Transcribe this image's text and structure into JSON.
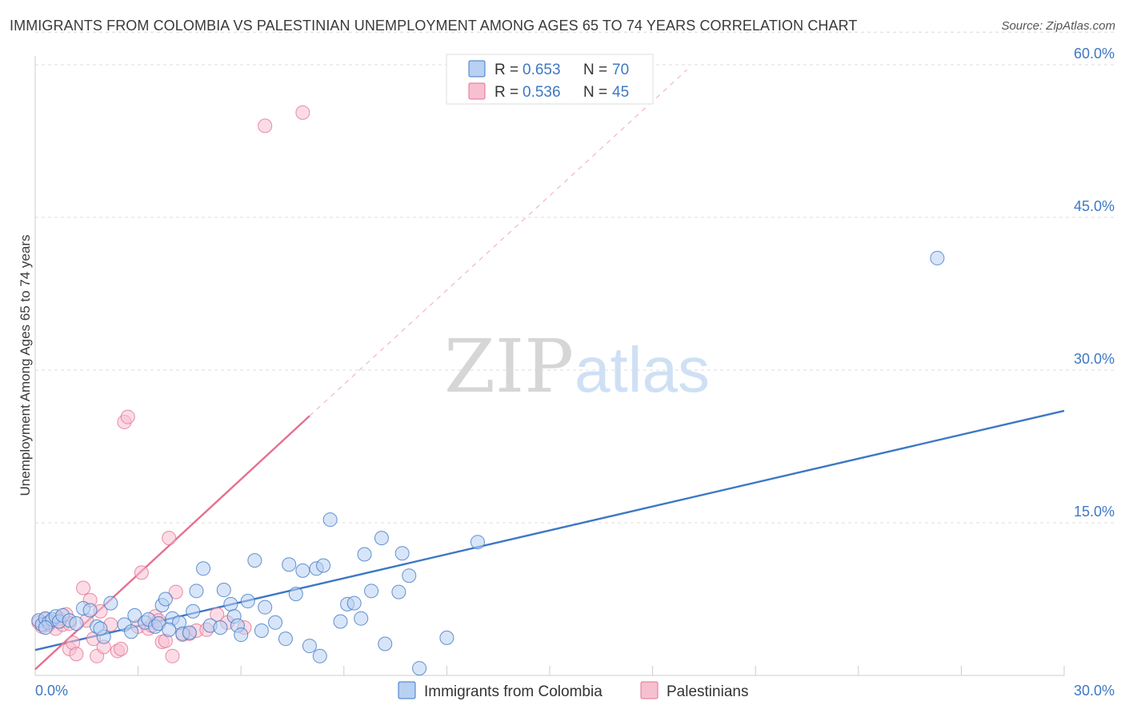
{
  "title": "IMMIGRANTS FROM COLOMBIA VS PALESTINIAN UNEMPLOYMENT AMONG AGES 65 TO 74 YEARS CORRELATION CHART",
  "source": "Source: ZipAtlas.com",
  "watermark": {
    "zip": "ZIP",
    "atlas": "atlas"
  },
  "colors": {
    "blue": "#3d78c4",
    "blue_fill": "#b8d0f2",
    "pink": "#e5708f",
    "pink_fill": "#f7c0d1",
    "grid": "#dcdcdc"
  },
  "chart_data": {
    "type": "scatter",
    "title": "IMMIGRANTS FROM COLOMBIA VS PALESTINIAN UNEMPLOYMENT AMONG AGES 65 TO 74 YEARS CORRELATION CHART",
    "xlabel": "",
    "ylabel": "Unemployment Among Ages 65 to 74 years",
    "xlim": [
      0,
      30
    ],
    "ylim": [
      0,
      63
    ],
    "x_tick_labels": [
      {
        "value": 0,
        "label": "0.0%"
      },
      {
        "value": 30,
        "label": "30.0%"
      }
    ],
    "y_tick_labels": [
      {
        "value": 15,
        "label": "15.0%"
      },
      {
        "value": 30,
        "label": "30.0%"
      },
      {
        "value": 45,
        "label": "45.0%"
      },
      {
        "value": 60,
        "label": "60.0%"
      }
    ],
    "legend": [
      {
        "name": "Immigrants from Colombia",
        "r_label": "R =",
        "r": "0.653",
        "n_label": "N =",
        "n": "70",
        "color": "blue"
      },
      {
        "name": "Palestinians",
        "r_label": "R =",
        "r": "0.536",
        "n_label": "N =",
        "n": "45",
        "color": "pink"
      }
    ],
    "series": [
      {
        "name": "Immigrants from Colombia",
        "color": "blue",
        "trendline": {
          "x": [
            0,
            30
          ],
          "y": [
            2.5,
            26.0
          ],
          "style": "solid"
        },
        "points": [
          [
            0.1,
            5.4
          ],
          [
            0.2,
            5.0
          ],
          [
            0.3,
            5.6
          ],
          [
            0.4,
            5.2
          ],
          [
            0.5,
            5.5
          ],
          [
            0.6,
            5.8
          ],
          [
            0.7,
            5.3
          ],
          [
            0.8,
            5.9
          ],
          [
            1.0,
            5.4
          ],
          [
            1.2,
            5.1
          ],
          [
            1.4,
            6.6
          ],
          [
            1.6,
            6.4
          ],
          [
            1.8,
            4.8
          ],
          [
            2.0,
            3.8
          ],
          [
            2.2,
            7.1
          ],
          [
            2.6,
            5.0
          ],
          [
            2.8,
            4.3
          ],
          [
            2.9,
            5.9
          ],
          [
            3.2,
            5.2
          ],
          [
            3.3,
            5.5
          ],
          [
            3.5,
            4.8
          ],
          [
            3.6,
            5.1
          ],
          [
            3.7,
            6.9
          ],
          [
            3.8,
            7.5
          ],
          [
            4.0,
            5.6
          ],
          [
            4.2,
            5.2
          ],
          [
            4.3,
            4.1
          ],
          [
            4.5,
            4.2
          ],
          [
            4.6,
            6.3
          ],
          [
            4.7,
            8.3
          ],
          [
            4.9,
            10.5
          ],
          [
            5.1,
            4.9
          ],
          [
            5.4,
            4.7
          ],
          [
            5.5,
            8.4
          ],
          [
            5.7,
            7.0
          ],
          [
            5.8,
            5.8
          ],
          [
            5.9,
            4.9
          ],
          [
            6.0,
            4.0
          ],
          [
            6.2,
            7.3
          ],
          [
            6.4,
            11.3
          ],
          [
            6.6,
            4.4
          ],
          [
            6.7,
            6.7
          ],
          [
            7.0,
            5.2
          ],
          [
            7.3,
            3.6
          ],
          [
            7.4,
            10.9
          ],
          [
            7.6,
            8.0
          ],
          [
            7.8,
            10.3
          ],
          [
            8.0,
            2.9
          ],
          [
            8.2,
            10.5
          ],
          [
            8.3,
            1.9
          ],
          [
            8.4,
            10.8
          ],
          [
            8.6,
            15.3
          ],
          [
            8.9,
            5.3
          ],
          [
            9.1,
            7.0
          ],
          [
            9.3,
            7.1
          ],
          [
            9.5,
            5.6
          ],
          [
            9.6,
            11.9
          ],
          [
            9.8,
            8.3
          ],
          [
            10.1,
            13.5
          ],
          [
            10.2,
            3.1
          ],
          [
            10.6,
            8.2
          ],
          [
            10.7,
            12.0
          ],
          [
            10.9,
            9.8
          ],
          [
            11.2,
            0.7
          ],
          [
            12.0,
            3.7
          ],
          [
            12.9,
            13.1
          ],
          [
            26.3,
            41.0
          ],
          [
            0.3,
            4.7
          ],
          [
            1.9,
            4.6
          ],
          [
            3.9,
            4.5
          ]
        ]
      },
      {
        "name": "Palestinians",
        "color": "pink",
        "trendline": {
          "x": [
            0,
            8
          ],
          "y": [
            0.6,
            25.5
          ],
          "style": "solid",
          "extension": {
            "x": [
              8,
              19
            ],
            "y": [
              25.5,
              59.5
            ],
            "style": "dashed"
          }
        },
        "points": [
          [
            0.1,
            5.2
          ],
          [
            0.2,
            4.8
          ],
          [
            0.3,
            5.5
          ],
          [
            0.4,
            5.0
          ],
          [
            0.5,
            5.3
          ],
          [
            0.6,
            4.6
          ],
          [
            0.7,
            5.6
          ],
          [
            0.8,
            5.0
          ],
          [
            0.9,
            6.0
          ],
          [
            1.0,
            5.1
          ],
          [
            1.0,
            2.6
          ],
          [
            1.1,
            3.2
          ],
          [
            1.2,
            2.1
          ],
          [
            1.4,
            8.6
          ],
          [
            1.5,
            5.4
          ],
          [
            1.6,
            7.4
          ],
          [
            1.7,
            3.6
          ],
          [
            1.8,
            1.9
          ],
          [
            1.9,
            6.3
          ],
          [
            2.0,
            2.8
          ],
          [
            2.2,
            5.0
          ],
          [
            2.4,
            2.4
          ],
          [
            2.5,
            2.6
          ],
          [
            2.6,
            24.9
          ],
          [
            2.7,
            25.4
          ],
          [
            3.0,
            4.8
          ],
          [
            3.1,
            10.1
          ],
          [
            3.3,
            4.6
          ],
          [
            3.4,
            4.9
          ],
          [
            3.5,
            5.8
          ],
          [
            3.6,
            5.4
          ],
          [
            3.7,
            3.3
          ],
          [
            3.8,
            3.4
          ],
          [
            3.9,
            13.5
          ],
          [
            4.0,
            1.9
          ],
          [
            4.1,
            8.2
          ],
          [
            4.3,
            4.0
          ],
          [
            4.5,
            4.1
          ],
          [
            4.7,
            4.4
          ],
          [
            5.0,
            4.5
          ],
          [
            5.3,
            6.0
          ],
          [
            5.6,
            5.2
          ],
          [
            6.1,
            4.7
          ],
          [
            6.7,
            54.0
          ],
          [
            7.8,
            55.3
          ]
        ]
      }
    ]
  }
}
